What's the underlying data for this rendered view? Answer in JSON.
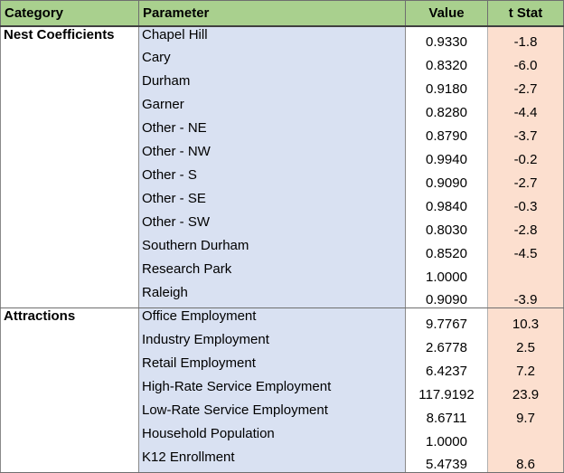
{
  "headers": {
    "category": "Category",
    "parameter": "Parameter",
    "value": "Value",
    "tstat": "t Stat"
  },
  "groups": [
    {
      "category": "Nest Coefficients",
      "rows": [
        {
          "parameter": "Chapel Hill",
          "value": "0.9330",
          "tstat": "-1.8"
        },
        {
          "parameter": "Cary",
          "value": "0.8320",
          "tstat": "-6.0"
        },
        {
          "parameter": "Durham",
          "value": "0.9180",
          "tstat": "-2.7"
        },
        {
          "parameter": "Garner",
          "value": "0.8280",
          "tstat": "-4.4"
        },
        {
          "parameter": "Other - NE",
          "value": "0.8790",
          "tstat": "-3.7"
        },
        {
          "parameter": "Other - NW",
          "value": "0.9940",
          "tstat": "-0.2"
        },
        {
          "parameter": "Other - S",
          "value": "0.9090",
          "tstat": "-2.7"
        },
        {
          "parameter": "Other - SE",
          "value": "0.9840",
          "tstat": "-0.3"
        },
        {
          "parameter": "Other - SW",
          "value": "0.8030",
          "tstat": "-2.8"
        },
        {
          "parameter": "Southern Durham",
          "value": "0.8520",
          "tstat": "-4.5"
        },
        {
          "parameter": "Research Park",
          "value": "1.0000",
          "tstat": ""
        },
        {
          "parameter": "Raleigh",
          "value": "0.9090",
          "tstat": "-3.9"
        }
      ]
    },
    {
      "category": "Attractions",
      "rows": [
        {
          "parameter": "Office Employment",
          "value": "9.7767",
          "tstat": "10.3"
        },
        {
          "parameter": "Industry Employment",
          "value": "2.6778",
          "tstat": "2.5"
        },
        {
          "parameter": "Retail Employment",
          "value": "6.4237",
          "tstat": "7.2"
        },
        {
          "parameter": "High-Rate Service Employment",
          "value": "117.9192",
          "tstat": "23.9"
        },
        {
          "parameter": "Low-Rate Service Employment",
          "value": "8.6711",
          "tstat": "9.7"
        },
        {
          "parameter": "Household Population",
          "value": "1.0000",
          "tstat": ""
        },
        {
          "parameter": "K12 Enrollment",
          "value": "5.4739",
          "tstat": "8.6"
        }
      ]
    }
  ]
}
